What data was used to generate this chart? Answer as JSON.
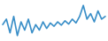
{
  "values": [
    45,
    55,
    30,
    60,
    25,
    50,
    35,
    55,
    30,
    45,
    35,
    50,
    38,
    48,
    42,
    50,
    44,
    52,
    46,
    55,
    48,
    60,
    80,
    55,
    65,
    50,
    70,
    55,
    60
  ],
  "line_color": "#3a8fc8",
  "background_color": "#ffffff",
  "linewidth": 1.2
}
